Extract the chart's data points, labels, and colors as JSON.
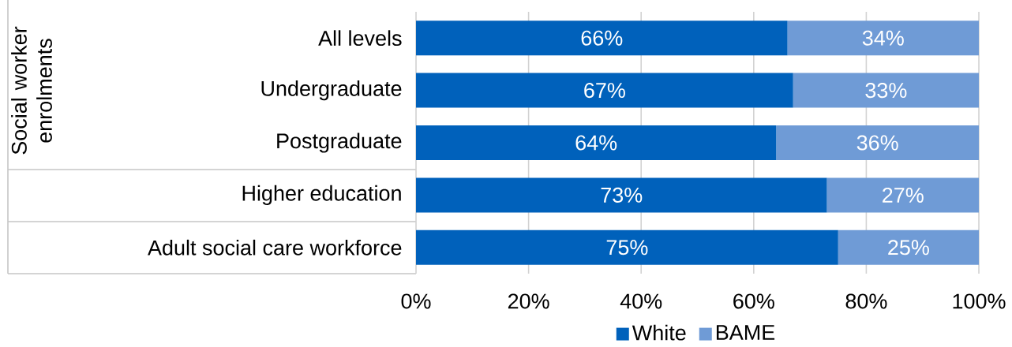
{
  "chart_data": {
    "type": "bar",
    "orientation": "horizontal",
    "stacked": true,
    "categories": [
      "All levels",
      "Undergraduate",
      "Postgraduate",
      "Higher education",
      "Adult social care workforce"
    ],
    "series": [
      {
        "name": "White",
        "color": "#0061bb",
        "values": [
          66,
          67,
          64,
          73,
          75
        ],
        "value_labels": [
          "66%",
          "67%",
          "64%",
          "73%",
          "75%"
        ]
      },
      {
        "name": "BAME",
        "color": "#6f9bd6",
        "values": [
          34,
          33,
          36,
          27,
          25
        ],
        "value_labels": [
          "34%",
          "33%",
          "36%",
          "27%",
          "25%"
        ]
      }
    ],
    "xlim": [
      0,
      100
    ],
    "xticks": [
      {
        "value": 0,
        "label": "0%"
      },
      {
        "value": 20,
        "label": "20%"
      },
      {
        "value": 40,
        "label": "40%"
      },
      {
        "value": 60,
        "label": "60%"
      },
      {
        "value": 80,
        "label": "80%"
      },
      {
        "value": 100,
        "label": "100%"
      }
    ],
    "grid": "x",
    "legend": "bottom",
    "annotations": [
      "Social worker enrolments"
    ]
  }
}
